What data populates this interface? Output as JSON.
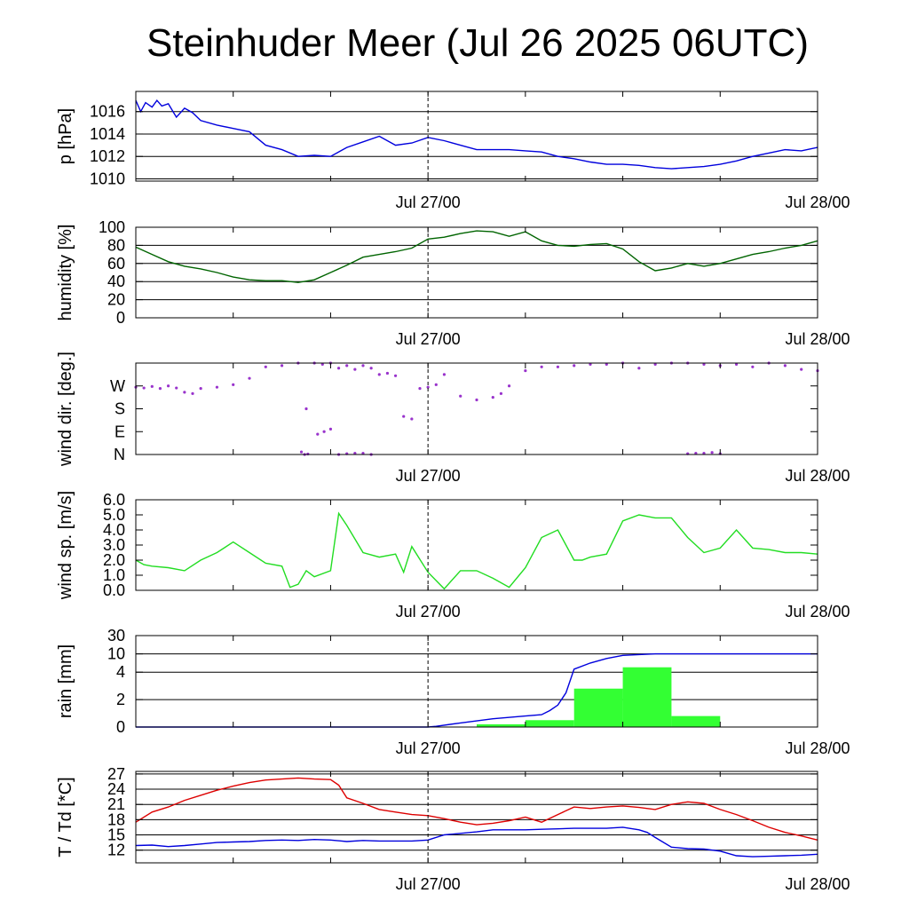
{
  "title": "Steinhuder Meer (Jul 26 2025 06UTC)",
  "x_tick_labels": [
    "Jul 27/00",
    "Jul 28/00"
  ],
  "chart_data": [
    {
      "type": "line",
      "ylabel": "p [hPa]",
      "ylim": [
        1009.8,
        1017.8
      ],
      "yticks": [
        1010,
        1012,
        1014,
        1016
      ],
      "ytick_labels": [
        "1010",
        "1012",
        "1014",
        "1016"
      ],
      "x_unit": "hours since Jul 26 06UTC",
      "xlim": [
        0,
        42
      ],
      "grid": "horizontal",
      "series": [
        {
          "color": "#0000dd",
          "x": [
            0,
            0.3,
            0.6,
            1,
            1.3,
            1.6,
            2,
            2.5,
            3,
            3.5,
            4,
            5,
            6,
            7,
            8,
            9,
            10,
            11,
            12,
            13,
            14,
            15,
            16,
            17,
            18,
            19,
            20,
            21,
            22,
            23,
            24,
            25,
            26,
            27,
            28,
            29,
            30,
            31,
            32,
            33,
            34,
            35,
            36,
            37,
            38,
            39,
            40,
            41,
            42
          ],
          "y": [
            1017,
            1016,
            1016.8,
            1016.4,
            1017,
            1016.5,
            1016.7,
            1015.5,
            1016.3,
            1015.9,
            1015.2,
            1014.8,
            1014.5,
            1014.2,
            1013,
            1012.6,
            1012,
            1012.1,
            1012,
            1012.8,
            1013.3,
            1013.8,
            1013,
            1013.2,
            1013.7,
            1013.4,
            1013,
            1012.6,
            1012.6,
            1012.6,
            1012.5,
            1012.4,
            1012,
            1011.8,
            1011.5,
            1011.3,
            1011.3,
            1011.2,
            1011,
            1010.9,
            1011,
            1011.1,
            1011.3,
            1011.6,
            1012,
            1012.3,
            1012.6,
            1012.5,
            1012.8
          ]
        }
      ]
    },
    {
      "type": "line",
      "ylabel": "humidity [%]",
      "ylim": [
        0,
        100
      ],
      "yticks": [
        0,
        20,
        40,
        60,
        80,
        100
      ],
      "ytick_labels": [
        "0",
        "20",
        "40",
        "60",
        "80",
        "100"
      ],
      "x_unit": "hours since Jul 26 06UTC",
      "xlim": [
        0,
        42
      ],
      "grid": "horizontal",
      "series": [
        {
          "color": "#006400",
          "x": [
            0,
            1,
            2,
            3,
            4,
            5,
            6,
            7,
            8,
            9,
            10,
            11,
            12,
            13,
            14,
            15,
            16,
            17,
            18,
            19,
            20,
            21,
            22,
            23,
            24,
            25,
            26,
            27,
            28,
            29,
            30,
            31,
            32,
            33,
            34,
            35,
            36,
            37,
            38,
            39,
            40,
            41,
            42
          ],
          "y": [
            78,
            70,
            62,
            57,
            54,
            50,
            45,
            42,
            41,
            41,
            39,
            42,
            50,
            58,
            67,
            70,
            73,
            77,
            87,
            89,
            93,
            96,
            95,
            90,
            95,
            85,
            80,
            79,
            81,
            82,
            76,
            62,
            52,
            55,
            60,
            57,
            60,
            65,
            70,
            73,
            77,
            80,
            85
          ]
        }
      ]
    },
    {
      "type": "scatter",
      "ylabel": "wind dir. [deg.]",
      "ylim": [
        0,
        360
      ],
      "yticks": [
        0,
        90,
        180,
        270
      ],
      "ytick_labels": [
        "N",
        "E",
        "S",
        "W"
      ],
      "x_unit": "hours since Jul 26 06UTC",
      "xlim": [
        0,
        42
      ],
      "grid": "none",
      "series": [
        {
          "color": "#9933cc",
          "x": [
            0,
            0.5,
            1,
            1.5,
            2,
            2.5,
            3,
            3.5,
            4,
            5,
            6,
            7,
            8,
            9,
            10,
            10.5,
            11,
            11.5,
            12,
            12.5,
            13,
            13.5,
            14,
            14.5,
            15,
            15.5,
            16,
            16.5,
            17,
            17.5,
            18,
            18.5,
            19,
            20,
            21,
            22,
            22.5,
            23,
            24,
            25,
            26,
            27,
            28,
            29,
            30,
            31,
            32,
            33,
            34,
            35,
            36,
            37,
            38,
            39,
            40,
            41,
            42
          ],
          "y": [
            265,
            262,
            268,
            260,
            270,
            262,
            245,
            240,
            260,
            265,
            275,
            300,
            345,
            350,
            360,
            180,
            360,
            355,
            360,
            340,
            350,
            335,
            350,
            340,
            315,
            320,
            310,
            150,
            140,
            260,
            265,
            275,
            315,
            230,
            215,
            225,
            240,
            270,
            330,
            345,
            345,
            350,
            355,
            355,
            360,
            340,
            355,
            360,
            360,
            355,
            350,
            355,
            345,
            360,
            350,
            335,
            330
          ]
        },
        {
          "color": "#9933cc",
          "x": [
            10.2,
            10.4,
            10.6,
            11.2,
            11.6,
            12,
            12.5,
            13,
            13.5,
            14,
            14.5,
            34,
            34.5,
            35,
            35.5,
            36
          ],
          "y": [
            10,
            0,
            2,
            80,
            90,
            100,
            0,
            3,
            5,
            5,
            0,
            3,
            5,
            5,
            8,
            3
          ]
        }
      ]
    },
    {
      "type": "line",
      "ylabel": "wind sp. [m/s]",
      "ylim": [
        0,
        6
      ],
      "yticks": [
        0,
        1,
        2,
        3,
        4,
        5,
        6
      ],
      "ytick_labels": [
        "0.0",
        "1.0",
        "2.0",
        "3.0",
        "4.0",
        "5.0",
        "6.0"
      ],
      "x_unit": "hours since Jul 26 06UTC",
      "xlim": [
        0,
        42
      ],
      "grid": "none",
      "series": [
        {
          "color": "#22dd22",
          "x": [
            0,
            0.5,
            1,
            2,
            3,
            4,
            5,
            6,
            7,
            8,
            9,
            9.5,
            10,
            10.5,
            11,
            12,
            12.5,
            13,
            14,
            15,
            16,
            16.5,
            17,
            18,
            19,
            20,
            21,
            22,
            23,
            24,
            25,
            26,
            27,
            27.5,
            28,
            29,
            30,
            31,
            32,
            33,
            34,
            35,
            36,
            37,
            38,
            39,
            40,
            41,
            42
          ],
          "y": [
            2,
            1.7,
            1.6,
            1.5,
            1.3,
            2,
            2.5,
            3.2,
            2.5,
            1.8,
            1.6,
            0.2,
            0.4,
            1.3,
            0.9,
            1.3,
            5.1,
            4.3,
            2.5,
            2.2,
            2.4,
            1.2,
            2.9,
            1.2,
            0.1,
            1.3,
            1.3,
            0.8,
            0.2,
            1.5,
            3.5,
            4,
            2,
            2,
            2.2,
            2.4,
            4.6,
            5,
            4.8,
            4.8,
            3.5,
            2.5,
            2.8,
            4,
            2.8,
            2.7,
            2.5,
            2.5,
            2.4
          ]
        }
      ]
    },
    {
      "type": "bar",
      "ylabel": "rain [mm]",
      "ylim": [
        0,
        30
      ],
      "yticks": [
        0,
        2,
        4,
        10,
        30
      ],
      "ytick_labels": [
        "0",
        "2",
        "4",
        "10",
        "30"
      ],
      "x_unit": "hours since Jul 26 06UTC",
      "xlim": [
        0,
        42
      ],
      "grid": "horizontal",
      "bars": {
        "color": "#33ff33",
        "x_start": [
          21,
          24,
          27,
          30,
          33
        ],
        "x_end": [
          24,
          27,
          30,
          33,
          36
        ],
        "values": [
          0.2,
          0.5,
          2.8,
          5.6,
          0.8
        ]
      },
      "series": [
        {
          "color": "#0000dd",
          "x": [
            0,
            18,
            18.5,
            20,
            22,
            24,
            25,
            25.5,
            26,
            26.5,
            27,
            28,
            29,
            30,
            32,
            42
          ],
          "y": [
            0,
            0,
            0.05,
            0.3,
            0.6,
            0.8,
            0.9,
            1.2,
            1.6,
            2.5,
            5,
            7,
            8.5,
            9.5,
            10,
            10
          ]
        }
      ]
    },
    {
      "type": "line",
      "ylabel": "T / Td [*C]",
      "ylim": [
        9.5,
        27.5
      ],
      "yticks": [
        12,
        15,
        18,
        21,
        24,
        27
      ],
      "ytick_labels": [
        "12",
        "15",
        "18",
        "21",
        "24",
        "27"
      ],
      "x_unit": "hours since Jul 26 06UTC",
      "xlim": [
        0,
        42
      ],
      "grid": "horizontal",
      "series": [
        {
          "color": "#dd0000",
          "x": [
            0,
            1,
            2,
            3,
            4,
            5,
            6,
            7,
            8,
            9,
            10,
            11,
            12,
            12.5,
            13,
            14,
            15,
            16,
            17,
            18,
            19,
            20,
            21,
            22,
            23,
            24,
            25,
            26,
            27,
            28,
            29,
            30,
            31,
            32,
            33,
            34,
            35,
            36,
            37,
            38,
            39,
            40,
            41,
            42
          ],
          "y": [
            17.5,
            19.5,
            20.5,
            21.8,
            22.8,
            23.8,
            24.6,
            25.3,
            25.8,
            26,
            26.2,
            26,
            25.9,
            24.8,
            22.3,
            21.2,
            20,
            19.5,
            19,
            18.8,
            18.2,
            17.5,
            17,
            17.3,
            17.8,
            18.5,
            17.5,
            19,
            20.5,
            20.2,
            20.5,
            20.7,
            20.4,
            20,
            21,
            21.5,
            21.2,
            20,
            19,
            17.8,
            16.5,
            15.5,
            14.8,
            14
          ]
        },
        {
          "color": "#0000dd",
          "x": [
            0,
            1,
            2,
            3,
            4,
            5,
            6,
            7,
            8,
            9,
            10,
            11,
            12,
            13,
            14,
            15,
            16,
            17,
            18,
            19,
            20,
            21,
            22,
            23,
            24,
            25,
            26,
            27,
            28,
            29,
            30,
            31,
            31.5,
            32,
            33,
            34,
            35,
            36,
            37,
            38,
            39,
            40,
            41,
            42
          ],
          "y": [
            12.9,
            13,
            12.7,
            12.9,
            13.2,
            13.5,
            13.6,
            13.7,
            13.9,
            14,
            13.9,
            14.1,
            14,
            13.7,
            13.9,
            13.8,
            13.8,
            13.8,
            14,
            15,
            15.3,
            15.6,
            16,
            16,
            16,
            16.1,
            16.2,
            16.3,
            16.3,
            16.3,
            16.5,
            16,
            15.5,
            14.5,
            12.6,
            12.3,
            12.2,
            11.8,
            10.9,
            10.7,
            10.8,
            10.9,
            11,
            11.2
          ]
        }
      ]
    }
  ]
}
